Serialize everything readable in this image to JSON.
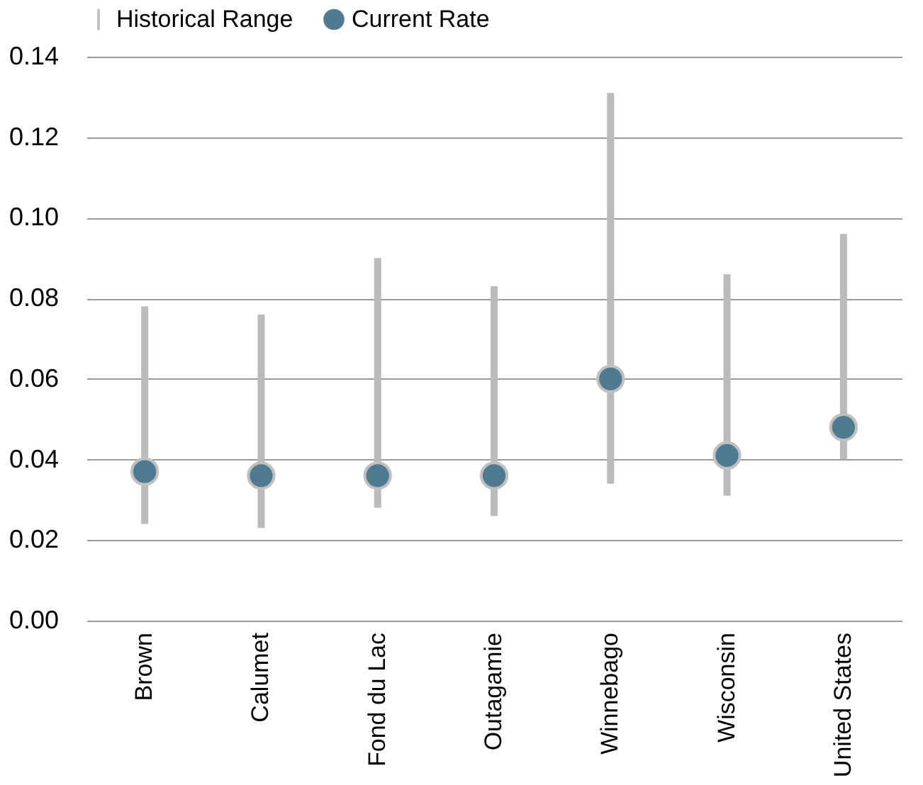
{
  "chart_data": {
    "type": "bar",
    "categories": [
      "Brown",
      "Calumet",
      "Fond du Lac",
      "Outagamie",
      "Winnebago",
      "Wisconsin",
      "United States"
    ],
    "series": [
      {
        "name": "Historical Range",
        "color": "#bbbbbb",
        "base": [
          0.024,
          0.023,
          0.028,
          0.026,
          0.034,
          0.031,
          0.04
        ],
        "values": [
          0.054,
          0.053,
          0.062,
          0.057,
          0.097,
          0.055,
          0.056
        ]
      },
      {
        "name": "Current Rate",
        "type": "scatter",
        "color": "#4f7a91",
        "marker": "circle",
        "values": [
          0.037,
          0.036,
          0.036,
          0.036,
          0.06,
          0.041,
          0.048
        ]
      }
    ],
    "ylim": [
      0,
      0.14
    ],
    "yticks": [
      {
        "value": 0,
        "label": "0.00"
      },
      {
        "value": 0.02,
        "label": "0.02"
      },
      {
        "value": 0.04,
        "label": "0.04"
      },
      {
        "value": 0.06,
        "label": "0.06"
      },
      {
        "value": 0.08,
        "label": "0.08"
      },
      {
        "value": 0.1,
        "label": "0.10"
      },
      {
        "value": 0.12,
        "label": "0.12"
      },
      {
        "value": 0.14,
        "label": "0.14"
      }
    ],
    "grid": "y",
    "legend": "top"
  }
}
